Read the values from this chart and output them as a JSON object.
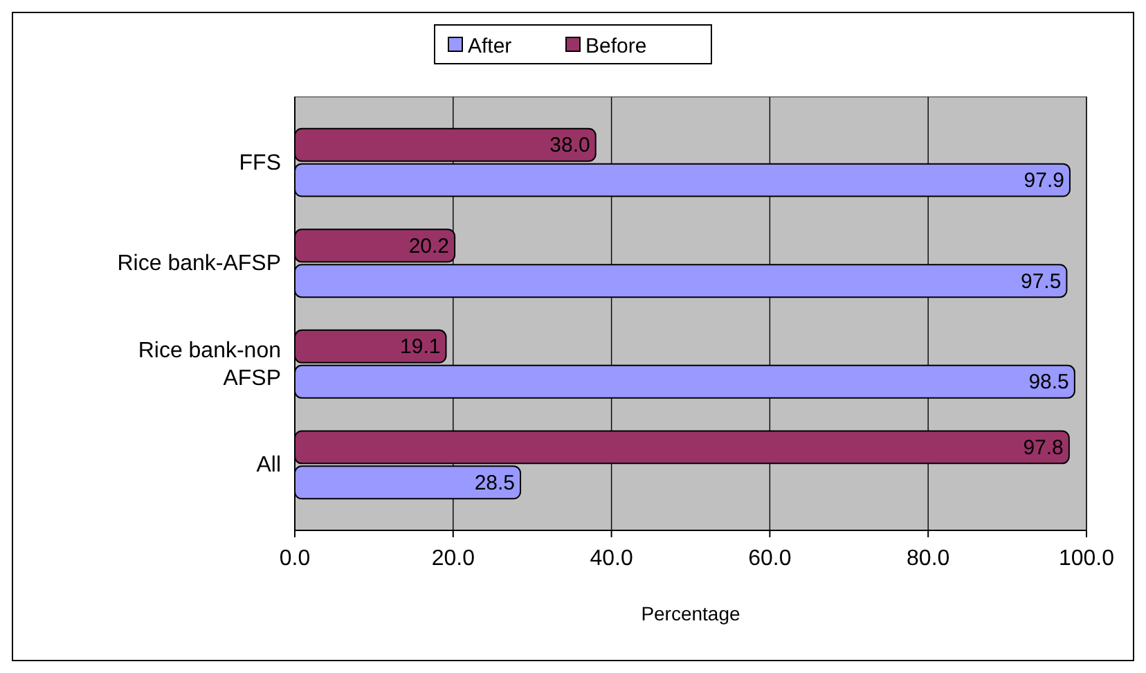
{
  "chart_data": {
    "type": "bar",
    "orientation": "horizontal",
    "xlabel": "Percentage",
    "categories": [
      "FFS",
      "Rice bank-AFSP",
      "Rice bank-non AFSP",
      "All"
    ],
    "series": [
      {
        "name": "After",
        "color": "#9999ff",
        "values": [
          97.9,
          97.5,
          98.5,
          28.5
        ],
        "value_labels": [
          "97.9",
          "97.5",
          "98.5",
          "28.5"
        ]
      },
      {
        "name": "Before",
        "color": "#993366",
        "values": [
          38.0,
          20.2,
          19.1,
          97.8
        ],
        "value_labels": [
          "38.0",
          "20.2",
          "19.1",
          "97.8"
        ]
      }
    ],
    "xlim": [
      0,
      100
    ],
    "xticks": [
      {
        "value": 0,
        "label": "0.0"
      },
      {
        "value": 20,
        "label": "20.0"
      },
      {
        "value": 40,
        "label": "40.0"
      },
      {
        "value": 60,
        "label": "60.0"
      },
      {
        "value": 80,
        "label": "80.0"
      },
      {
        "value": 100,
        "label": "100.0"
      }
    ],
    "grid": "x",
    "legend": "top"
  }
}
